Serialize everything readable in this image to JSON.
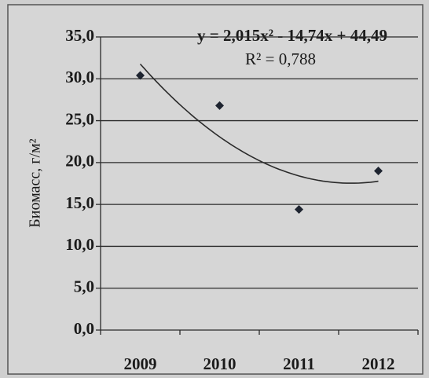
{
  "chart_data": {
    "type": "scatter",
    "y_label": "Биомасс, г/м²",
    "annotations": [
      "y = 2,015x² - 14,74x + 44,49",
      "R² = 0,788"
    ],
    "trend_coefficients": [
      2.015,
      -14.74,
      44.49
    ],
    "categories": [
      "2009",
      "2010",
      "2011",
      "2012"
    ],
    "values": [
      30.4,
      26.8,
      14.4,
      19.0
    ],
    "color": "#1e2430",
    "ylim": [
      0,
      35
    ],
    "yticks": [
      {
        "value": 0,
        "label": "0,0"
      },
      {
        "value": 5,
        "label": "5,0"
      },
      {
        "value": 10,
        "label": "10,0"
      },
      {
        "value": 15,
        "label": "15,0"
      },
      {
        "value": 20,
        "label": "20,0"
      },
      {
        "value": 25,
        "label": "25,0"
      },
      {
        "value": 30,
        "label": "30,0"
      },
      {
        "value": 35,
        "label": "35,0"
      }
    ],
    "grid": true
  }
}
